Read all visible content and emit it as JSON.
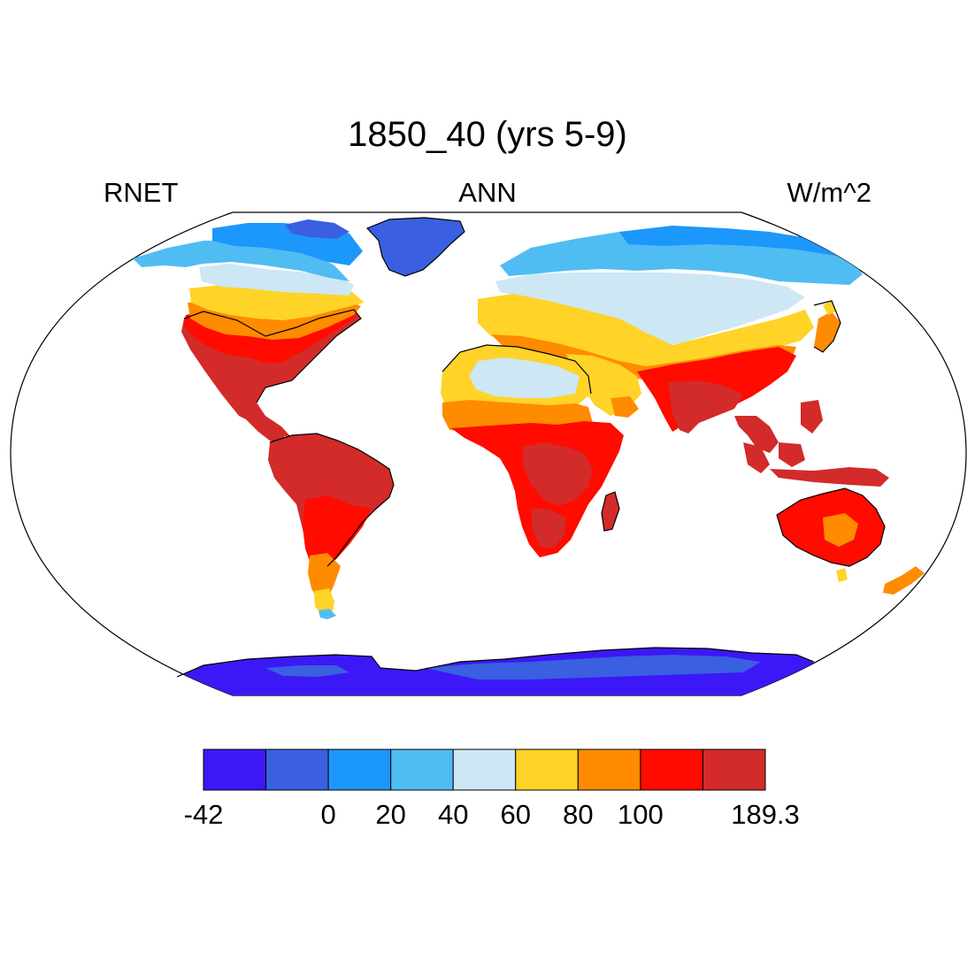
{
  "header": {
    "title": "1850_40 (yrs 5-9)",
    "left_label": "RNET",
    "center_label": "ANN",
    "right_label": "W/m^2"
  },
  "colorbar": {
    "colors": [
      "#3B18F5",
      "#3A5FE1",
      "#1C97FB",
      "#4FBDF2",
      "#CDE7F5",
      "#FFD328",
      "#FF8B00",
      "#FF0B00",
      "#D32A2A"
    ],
    "labels": [
      "-42",
      "0",
      "20",
      "40",
      "60",
      "80",
      "100",
      "189.3"
    ]
  },
  "map": {
    "projection": "Robinson",
    "ocean_color": "#ffffff",
    "coastline_color": "#000000"
  }
}
